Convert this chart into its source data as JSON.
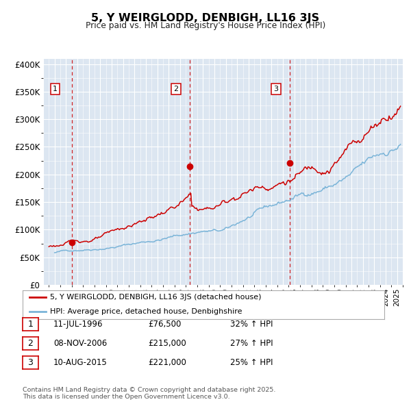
{
  "title": "5, Y WEIRGLODD, DENBIGH, LL16 3JS",
  "subtitle": "Price paid vs. HM Land Registry's House Price Index (HPI)",
  "background_color": "#ffffff",
  "plot_bg_color": "#dce6f1",
  "grid_color": "#ffffff",
  "line1_color": "#cc0000",
  "line2_color": "#7ab4d8",
  "vline_color": "#cc0000",
  "sale_marker_color": "#cc0000",
  "ylim": [
    0,
    410000
  ],
  "yticks": [
    0,
    50000,
    100000,
    150000,
    200000,
    250000,
    300000,
    350000,
    400000
  ],
  "ytick_labels": [
    "£0",
    "£50K",
    "£100K",
    "£150K",
    "£200K",
    "£250K",
    "£300K",
    "£350K",
    "£400K"
  ],
  "sale1_date": 1996.53,
  "sale1_price": 76500,
  "sale2_date": 2006.85,
  "sale2_price": 215000,
  "sale3_date": 2015.6,
  "sale3_price": 221000,
  "legend_label1": "5, Y WEIRGLODD, DENBIGH, LL16 3JS (detached house)",
  "legend_label2": "HPI: Average price, detached house, Denbighshire",
  "table_rows": [
    [
      "1",
      "11-JUL-1996",
      "£76,500",
      "32% ↑ HPI"
    ],
    [
      "2",
      "08-NOV-2006",
      "£215,000",
      "27% ↑ HPI"
    ],
    [
      "3",
      "10-AUG-2015",
      "£221,000",
      "25% ↑ HPI"
    ]
  ],
  "footnote": "Contains HM Land Registry data © Crown copyright and database right 2025.\nThis data is licensed under the Open Government Licence v3.0.",
  "xmin": 1994,
  "xmax": 2025.5
}
